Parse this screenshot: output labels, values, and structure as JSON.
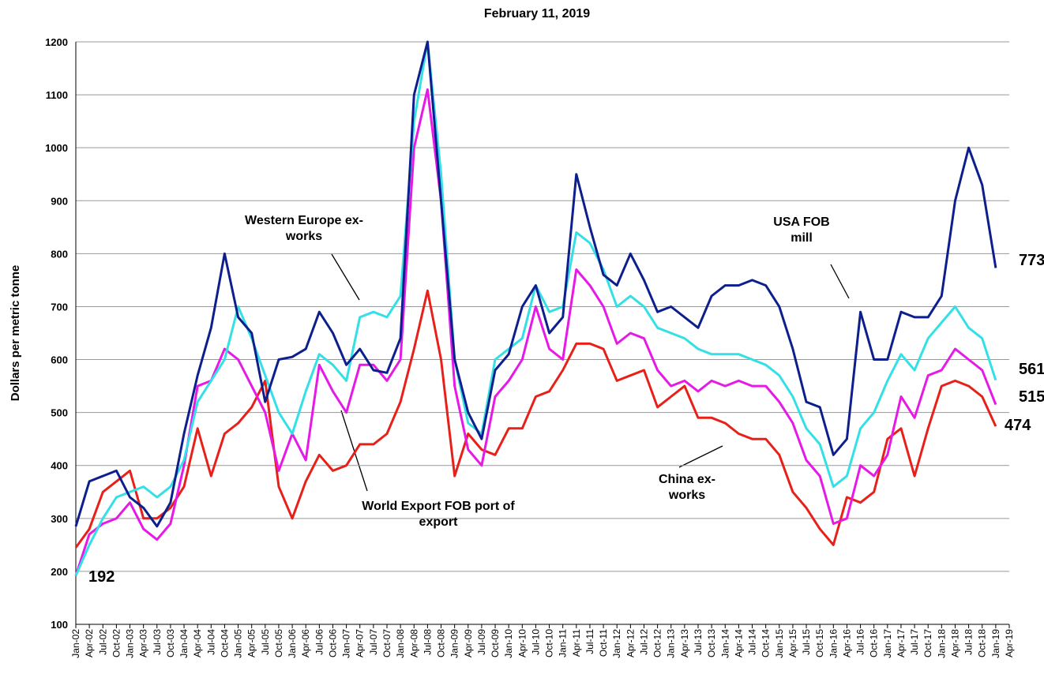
{
  "chart_data": {
    "type": "line",
    "title": "February 11, 2019",
    "y_label": "Dollars per metric tonne",
    "categories": [
      "Jan-02",
      "Apr-02",
      "Jul-02",
      "Oct-02",
      "Jan-03",
      "Apr-03",
      "Jul-03",
      "Oct-03",
      "Jan-04",
      "Apr-04",
      "Jul-04",
      "Oct-04",
      "Jan-05",
      "Apr-05",
      "Jul-05",
      "Oct-05",
      "Jan-06",
      "Apr-06",
      "Jul-06",
      "Oct-06",
      "Jan-07",
      "Apr-07",
      "Jul-07",
      "Oct-07",
      "Jan-08",
      "Apr-08",
      "Jul-08",
      "Oct-08",
      "Jan-09",
      "Apr-09",
      "Jul-09",
      "Oct-09",
      "Jan-10",
      "Apr-10",
      "Jul-10",
      "Oct-10",
      "Jan-11",
      "Apr-11",
      "Jul-11",
      "Oct-11",
      "Jan-12",
      "Apr-12",
      "Jul-12",
      "Oct-12",
      "Jan-13",
      "Apr-13",
      "Jul-13",
      "Oct-13",
      "Jan-14",
      "Apr-14",
      "Jul-14",
      "Oct-14",
      "Jan-15",
      "Apr-15",
      "Jul-15",
      "Oct-15",
      "Jan-16",
      "Apr-16",
      "Jul-16",
      "Oct-16",
      "Jan-17",
      "Apr-17",
      "Jul-17",
      "Oct-17",
      "Jan-18",
      "Apr-18",
      "Jul-18",
      "Oct-18",
      "Jan-19",
      "Apr-19"
    ],
    "series": [
      {
        "name": "USA FOB mill",
        "color": "#0d1f8c",
        "values": [
          285,
          370,
          380,
          390,
          340,
          320,
          285,
          330,
          460,
          570,
          660,
          800,
          680,
          650,
          520,
          600,
          605,
          620,
          690,
          650,
          590,
          620,
          580,
          575,
          640,
          1100,
          1200,
          900,
          600,
          500,
          450,
          580,
          610,
          700,
          740,
          650,
          680,
          950,
          850,
          760,
          740,
          800,
          750,
          690,
          700,
          680,
          660,
          720,
          740,
          740,
          750,
          740,
          700,
          620,
          520,
          510,
          420,
          450,
          690,
          600,
          600,
          690,
          680,
          680,
          720,
          900,
          1000,
          930,
          773,
          null
        ]
      },
      {
        "name": "Western Europe ex-works",
        "color": "#33e0e6",
        "values": [
          192,
          250,
          300,
          340,
          350,
          360,
          340,
          360,
          410,
          520,
          560,
          600,
          700,
          640,
          570,
          500,
          460,
          540,
          610,
          590,
          560,
          680,
          690,
          680,
          720,
          1050,
          1200,
          950,
          600,
          480,
          460,
          600,
          620,
          640,
          740,
          690,
          700,
          840,
          820,
          770,
          700,
          720,
          700,
          660,
          650,
          640,
          620,
          610,
          610,
          610,
          600,
          590,
          570,
          530,
          470,
          440,
          360,
          380,
          470,
          500,
          560,
          610,
          580,
          640,
          670,
          700,
          660,
          640,
          561,
          null
        ]
      },
      {
        "name": "World Export FOB port of export",
        "color": "#e619e6",
        "values": [
          192,
          270,
          290,
          300,
          330,
          280,
          260,
          290,
          400,
          550,
          560,
          620,
          600,
          550,
          500,
          390,
          460,
          410,
          590,
          540,
          500,
          590,
          590,
          560,
          600,
          1000,
          1110,
          900,
          550,
          430,
          400,
          530,
          560,
          600,
          700,
          620,
          600,
          770,
          740,
          700,
          630,
          650,
          640,
          580,
          550,
          560,
          540,
          560,
          550,
          560,
          550,
          550,
          520,
          480,
          410,
          380,
          290,
          300,
          400,
          380,
          420,
          530,
          490,
          570,
          580,
          620,
          600,
          580,
          515,
          null
        ]
      },
      {
        "name": "China ex-works",
        "color": "#e8201a",
        "values": [
          245,
          280,
          350,
          370,
          390,
          300,
          300,
          320,
          360,
          470,
          380,
          460,
          480,
          510,
          560,
          360,
          300,
          370,
          420,
          390,
          400,
          440,
          440,
          460,
          520,
          620,
          730,
          600,
          380,
          460,
          430,
          420,
          470,
          470,
          530,
          540,
          580,
          630,
          630,
          620,
          560,
          570,
          580,
          510,
          530,
          550,
          490,
          490,
          480,
          460,
          450,
          450,
          420,
          350,
          320,
          280,
          250,
          340,
          330,
          350,
          450,
          470,
          380,
          470,
          550,
          560,
          550,
          530,
          474,
          null
        ]
      }
    ],
    "annotations": [
      773,
      561,
      515,
      474,
      192
    ],
    "ylim": [
      100,
      1200
    ],
    "yticks": [
      100,
      200,
      300,
      400,
      500,
      600,
      700,
      800,
      900,
      1000,
      1100,
      1200
    ],
    "grid": true
  }
}
